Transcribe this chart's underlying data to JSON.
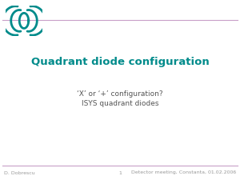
{
  "title": "Quadrant diode configuration",
  "subtitle_line1": "‘X’ or ‘+’ configuration?",
  "subtitle_line2": "ISYS quadrant diodes",
  "footer_left": "D. Dobrescu",
  "footer_center": "1",
  "footer_right": "Detector meeting, Constanta, 01.02.2006",
  "title_color": "#008B8B",
  "subtitle_color": "#555555",
  "footer_color": "#999999",
  "bg_color": "#ffffff",
  "header_line_color": "#C8A0C8",
  "footer_line_color": "#C8A0C8",
  "logo_arc_color": "#008B8B"
}
